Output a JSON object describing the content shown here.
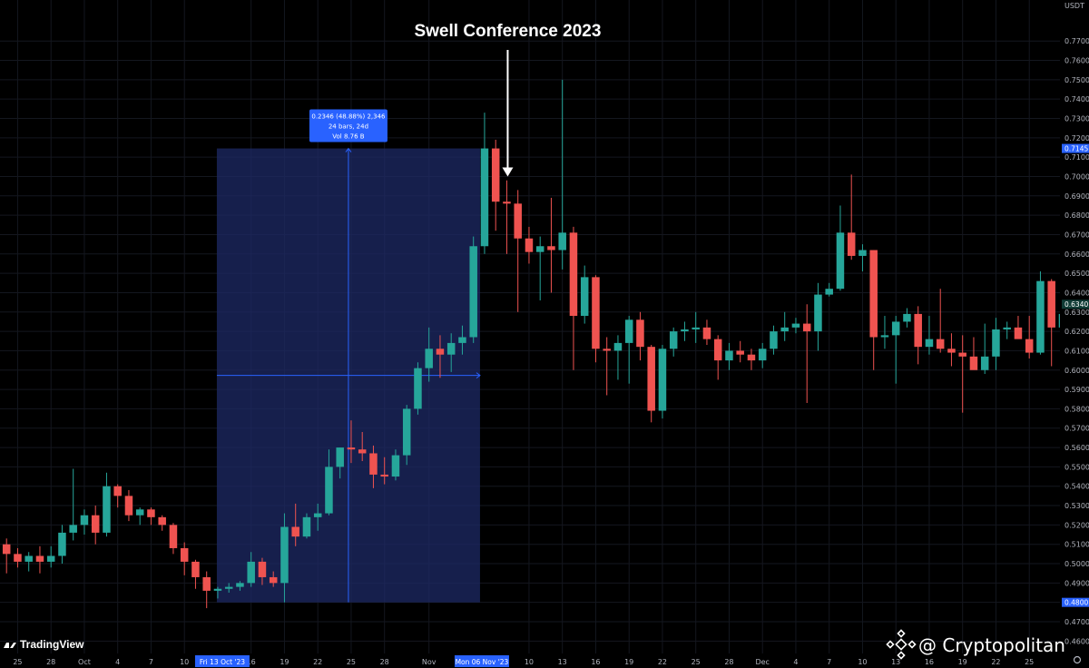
{
  "chart_data": {
    "type": "candlestick",
    "title": "",
    "quote_currency": "USDT",
    "ylim": [
      0.455,
      0.779
    ],
    "y_ticks": [
      "0.4600",
      "0.4700",
      "0.4800",
      "0.4900",
      "0.5000",
      "0.5100",
      "0.5200",
      "0.5300",
      "0.5400",
      "0.5500",
      "0.5600",
      "0.5700",
      "0.5800",
      "0.5900",
      "0.6000",
      "0.6100",
      "0.6200",
      "0.6300",
      "0.6400",
      "0.6500",
      "0.6600",
      "0.6700",
      "0.6800",
      "0.6900",
      "0.7000",
      "0.7100",
      "0.7200",
      "0.7300",
      "0.7400",
      "0.7500",
      "0.7600",
      "0.7700"
    ],
    "x_ticks": [
      {
        "i": 1,
        "label": "25"
      },
      {
        "i": 4,
        "label": "28"
      },
      {
        "i": 7,
        "label": "Oct"
      },
      {
        "i": 10,
        "label": "4"
      },
      {
        "i": 13,
        "label": "7"
      },
      {
        "i": 16,
        "label": "10"
      },
      {
        "i": 22,
        "label": "16"
      },
      {
        "i": 25,
        "label": "19"
      },
      {
        "i": 28,
        "label": "22"
      },
      {
        "i": 31,
        "label": "25"
      },
      {
        "i": 34,
        "label": "28"
      },
      {
        "i": 38,
        "label": "Nov"
      },
      {
        "i": 47,
        "label": "10"
      },
      {
        "i": 50,
        "label": "13"
      },
      {
        "i": 53,
        "label": "16"
      },
      {
        "i": 56,
        "label": "19"
      },
      {
        "i": 59,
        "label": "22"
      },
      {
        "i": 62,
        "label": "25"
      },
      {
        "i": 65,
        "label": "28"
      },
      {
        "i": 68,
        "label": "Dec"
      },
      {
        "i": 71,
        "label": "4"
      },
      {
        "i": 74,
        "label": "7"
      },
      {
        "i": 77,
        "label": "10"
      },
      {
        "i": 80,
        "label": "13"
      },
      {
        "i": 83,
        "label": "16"
      },
      {
        "i": 86,
        "label": "19"
      },
      {
        "i": 89,
        "label": "22"
      },
      {
        "i": 92,
        "label": "25"
      }
    ],
    "highlighted_x": [
      {
        "i": 19,
        "label": "Fri 13 Oct '23"
      },
      {
        "i": 43,
        "label": "Mon 06 Nov '23"
      }
    ],
    "price_tags": [
      {
        "value": 0.7145,
        "label": "0.7145"
      },
      {
        "value": 0.634,
        "label": "0.6340"
      },
      {
        "value": 0.48,
        "label": "0.4800"
      }
    ],
    "measure": {
      "start_i": 19,
      "end_i": 43,
      "low": 0.48,
      "high": 0.7145,
      "line1": "0.2346 (48.88%) 2,346",
      "line2": "24 bars, 24d",
      "line3": "Vol 8.76 B"
    },
    "annotation": {
      "text": "Swell Conference 2023",
      "i": 45,
      "value": 0.7
    },
    "candles": [
      [
        0.51,
        0.513,
        0.495,
        0.505
      ],
      [
        0.505,
        0.508,
        0.498,
        0.501
      ],
      [
        0.501,
        0.506,
        0.496,
        0.504
      ],
      [
        0.504,
        0.509,
        0.495,
        0.501
      ],
      [
        0.501,
        0.509,
        0.498,
        0.504
      ],
      [
        0.504,
        0.52,
        0.5,
        0.516
      ],
      [
        0.516,
        0.549,
        0.512,
        0.52
      ],
      [
        0.52,
        0.528,
        0.515,
        0.525
      ],
      [
        0.525,
        0.53,
        0.51,
        0.516
      ],
      [
        0.516,
        0.547,
        0.514,
        0.54
      ],
      [
        0.54,
        0.541,
        0.529,
        0.535
      ],
      [
        0.535,
        0.538,
        0.522,
        0.525
      ],
      [
        0.525,
        0.529,
        0.52,
        0.528
      ],
      [
        0.528,
        0.529,
        0.52,
        0.524
      ],
      [
        0.524,
        0.525,
        0.517,
        0.52
      ],
      [
        0.52,
        0.521,
        0.505,
        0.508
      ],
      [
        0.508,
        0.511,
        0.494,
        0.501
      ],
      [
        0.501,
        0.502,
        0.487,
        0.493
      ],
      [
        0.493,
        0.496,
        0.477,
        0.486
      ],
      [
        0.486,
        0.488,
        0.482,
        0.487
      ],
      [
        0.487,
        0.49,
        0.485,
        0.488
      ],
      [
        0.488,
        0.491,
        0.486,
        0.49
      ],
      [
        0.49,
        0.506,
        0.488,
        0.501
      ],
      [
        0.501,
        0.503,
        0.489,
        0.493
      ],
      [
        0.493,
        0.496,
        0.488,
        0.49
      ],
      [
        0.49,
        0.526,
        0.48,
        0.519
      ],
      [
        0.519,
        0.531,
        0.509,
        0.514
      ],
      [
        0.514,
        0.526,
        0.513,
        0.524
      ],
      [
        0.524,
        0.531,
        0.517,
        0.526
      ],
      [
        0.526,
        0.559,
        0.525,
        0.55
      ],
      [
        0.55,
        0.56,
        0.544,
        0.56
      ],
      [
        0.56,
        0.574,
        0.552,
        0.559
      ],
      [
        0.559,
        0.568,
        0.553,
        0.557
      ],
      [
        0.557,
        0.561,
        0.539,
        0.546
      ],
      [
        0.546,
        0.555,
        0.541,
        0.545
      ],
      [
        0.545,
        0.559,
        0.543,
        0.556
      ],
      [
        0.556,
        0.582,
        0.551,
        0.58
      ],
      [
        0.58,
        0.604,
        0.577,
        0.601
      ],
      [
        0.601,
        0.622,
        0.594,
        0.611
      ],
      [
        0.611,
        0.618,
        0.596,
        0.608
      ],
      [
        0.608,
        0.619,
        0.599,
        0.614
      ],
      [
        0.614,
        0.623,
        0.608,
        0.617
      ],
      [
        0.617,
        0.669,
        0.614,
        0.664
      ],
      [
        0.664,
        0.733,
        0.66,
        0.7145
      ],
      [
        0.7145,
        0.719,
        0.672,
        0.687
      ],
      [
        0.687,
        0.698,
        0.66,
        0.686
      ],
      [
        0.686,
        0.693,
        0.63,
        0.668
      ],
      [
        0.668,
        0.674,
        0.655,
        0.661
      ],
      [
        0.661,
        0.669,
        0.636,
        0.664
      ],
      [
        0.664,
        0.689,
        0.64,
        0.662
      ],
      [
        0.662,
        0.75,
        0.652,
        0.671
      ],
      [
        0.671,
        0.674,
        0.6,
        0.628
      ],
      [
        0.628,
        0.654,
        0.624,
        0.648
      ],
      [
        0.648,
        0.649,
        0.604,
        0.611
      ],
      [
        0.611,
        0.617,
        0.587,
        0.61
      ],
      [
        0.61,
        0.618,
        0.595,
        0.614
      ],
      [
        0.614,
        0.628,
        0.593,
        0.626
      ],
      [
        0.626,
        0.63,
        0.605,
        0.612
      ],
      [
        0.612,
        0.613,
        0.573,
        0.579
      ],
      [
        0.579,
        0.613,
        0.575,
        0.611
      ],
      [
        0.611,
        0.622,
        0.607,
        0.62
      ],
      [
        0.62,
        0.625,
        0.615,
        0.621
      ],
      [
        0.621,
        0.63,
        0.614,
        0.622
      ],
      [
        0.622,
        0.626,
        0.613,
        0.616
      ],
      [
        0.616,
        0.618,
        0.595,
        0.605
      ],
      [
        0.605,
        0.614,
        0.6,
        0.61
      ],
      [
        0.61,
        0.615,
        0.604,
        0.608
      ],
      [
        0.608,
        0.611,
        0.6,
        0.605
      ],
      [
        0.605,
        0.614,
        0.601,
        0.611
      ],
      [
        0.611,
        0.623,
        0.608,
        0.62
      ],
      [
        0.62,
        0.63,
        0.615,
        0.622
      ],
      [
        0.622,
        0.627,
        0.619,
        0.624
      ],
      [
        0.624,
        0.634,
        0.583,
        0.62
      ],
      [
        0.62,
        0.645,
        0.61,
        0.639
      ],
      [
        0.639,
        0.645,
        0.638,
        0.642
      ],
      [
        0.642,
        0.685,
        0.641,
        0.671
      ],
      [
        0.671,
        0.701,
        0.657,
        0.659
      ],
      [
        0.659,
        0.665,
        0.651,
        0.662
      ],
      [
        0.662,
        0.662,
        0.6,
        0.617
      ],
      [
        0.617,
        0.628,
        0.611,
        0.618
      ],
      [
        0.618,
        0.628,
        0.593,
        0.625
      ],
      [
        0.625,
        0.632,
        0.622,
        0.629
      ],
      [
        0.629,
        0.633,
        0.603,
        0.612
      ],
      [
        0.612,
        0.628,
        0.608,
        0.616
      ],
      [
        0.616,
        0.642,
        0.609,
        0.611
      ],
      [
        0.611,
        0.619,
        0.602,
        0.609
      ],
      [
        0.609,
        0.618,
        0.578,
        0.607
      ],
      [
        0.607,
        0.617,
        0.601,
        0.6
      ],
      [
        0.6,
        0.624,
        0.598,
        0.607
      ],
      [
        0.607,
        0.627,
        0.6,
        0.621
      ],
      [
        0.621,
        0.625,
        0.616,
        0.622
      ],
      [
        0.622,
        0.628,
        0.617,
        0.616
      ],
      [
        0.616,
        0.628,
        0.606,
        0.609
      ],
      [
        0.609,
        0.651,
        0.608,
        0.646
      ],
      [
        0.646,
        0.647,
        0.602,
        0.622
      ],
      [
        0.622,
        0.631,
        0.61,
        0.629
      ]
    ]
  },
  "branding": {
    "left_logo_text": "TradingView",
    "credit_text": "@ Cryptopolitan"
  },
  "colors": {
    "up": "#26a69a",
    "down": "#ef5350",
    "background": "#000000",
    "grid": "#14171f",
    "measure_fill": "#1e2a66",
    "measure_label": "#2962ff",
    "axis_text": "#b2b5be"
  }
}
